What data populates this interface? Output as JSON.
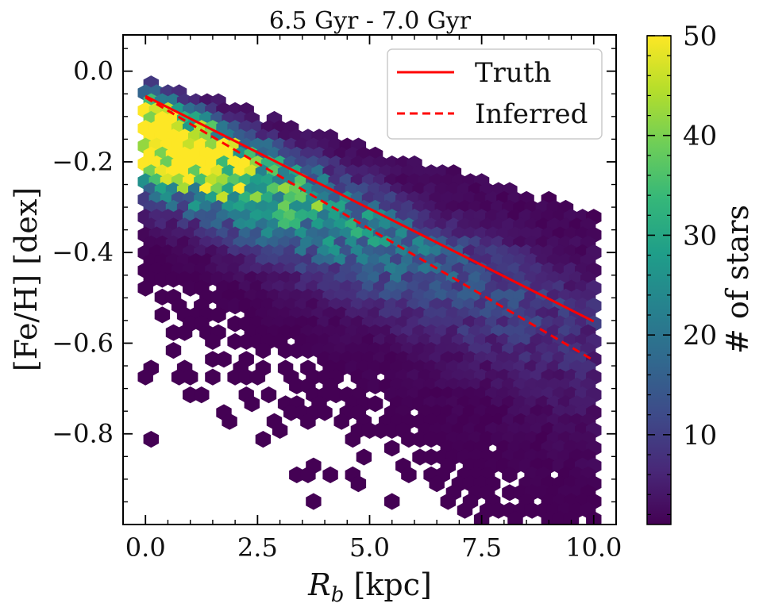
{
  "chart_data": {
    "type": "hexbin",
    "title": "6.5 Gyr - 7.0 Gyr",
    "xlabel_symbol": "R",
    "xlabel_sub": "b",
    "xlabel_unit": " [kpc]",
    "ylabel": "[Fe/H] [dex]",
    "xlim": [
      -0.5,
      10.5
    ],
    "ylim": [
      -1.0,
      0.08
    ],
    "xticks": [
      0.0,
      2.5,
      5.0,
      7.5,
      10.0
    ],
    "xtick_labels": [
      "0.0",
      "2.5",
      "5.0",
      "7.5",
      "10.0"
    ],
    "yticks": [
      0.0,
      -0.2,
      -0.4,
      -0.6,
      -0.8
    ],
    "ytick_labels": [
      "0.0",
      "−0.2",
      "−0.4",
      "−0.6",
      "−0.8"
    ],
    "series": [
      {
        "name": "Truth",
        "style": "solid",
        "color": "#ff0000",
        "x": [
          0.0,
          10.0
        ],
        "y": [
          -0.055,
          -0.552
        ]
      },
      {
        "name": "Inferred",
        "style": "dashed",
        "color": "#ff0000",
        "x": [
          0.0,
          10.0
        ],
        "y": [
          -0.058,
          -0.638
        ]
      }
    ],
    "legend_position": "top-right",
    "colorbar": {
      "label": "# of stars",
      "range": [
        1,
        50
      ],
      "ticks": [
        10,
        20,
        30,
        40,
        50
      ],
      "tick_labels": [
        "10",
        "20",
        "30",
        "40",
        "50"
      ],
      "colormap": [
        "#440154",
        "#482878",
        "#3e4a89",
        "#31688e",
        "#26828e",
        "#1f9e89",
        "#35b779",
        "#6ece58",
        "#b5de2b",
        "#fde725"
      ]
    },
    "density_model": {
      "ridge_intercept": -0.12,
      "ridge_slope": -0.045,
      "peak_count": 80,
      "upper_edge_intercept": -0.035,
      "upper_edge_slope": -0.029
    }
  }
}
